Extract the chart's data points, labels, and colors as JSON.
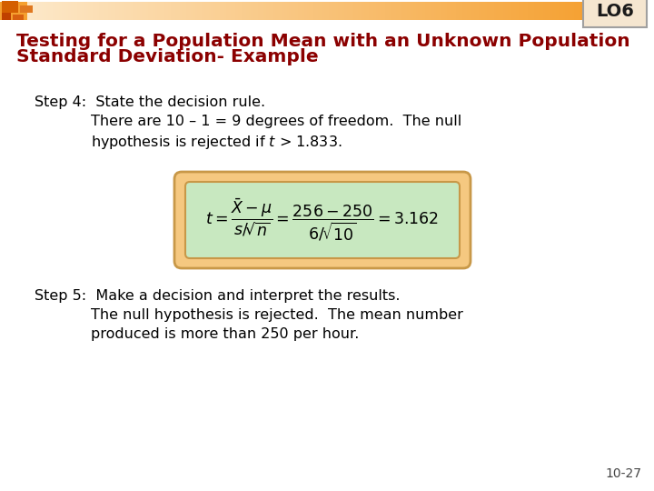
{
  "title_line1": "Testing for a Population Mean with an Unknown Population",
  "title_line2": "Standard Deviation- Example",
  "title_color": "#8B0000",
  "background_color": "#FFFFFF",
  "lo_label": "LO6",
  "lo_box_fill": "#F5E6D0",
  "lo_box_edge": "#A0A0A0",
  "header_bar_fill": "#F5A830",
  "header_bar_fade": "#FDE8C8",
  "sq1_color": "#D45F00",
  "sq2_color": "#E07820",
  "sq3_color": "#C04000",
  "sq4_color": "#D86010",
  "step4_main": "Step 4:  State the decision rule.",
  "step4_line2a": "There are 10 – 1 = 9 degrees of freedom.  The null",
  "step4_line3a": "hypothesis is rejected if ",
  "step4_italic": "t",
  "step4_line3b": " > 1.833.",
  "step5_main": "Step 5:  Make a decision and interpret the results.",
  "step5_line2": "The null hypothesis is rejected.  The mean number",
  "step5_line3": "produced is more than 250 per hour.",
  "formula_box_fill": "#C8E8C0",
  "formula_box_outer_fill": "#F5C880",
  "formula_box_edge": "#C89848",
  "footer": "10-27",
  "text_color": "#000000",
  "text_fontsize": 11.5,
  "title_fontsize": 14.5,
  "lo_fontsize": 14,
  "footer_fontsize": 10
}
